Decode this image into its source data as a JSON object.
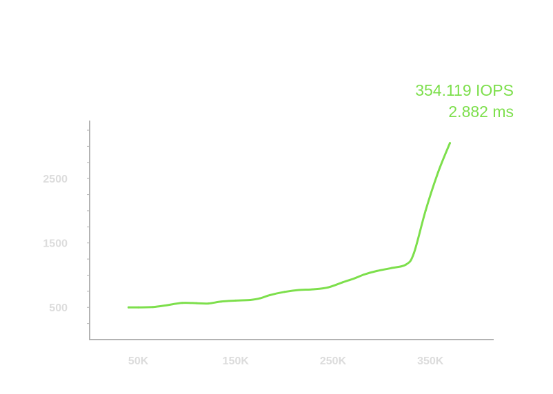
{
  "chart_data": {
    "type": "line",
    "x": [
      40000,
      50000,
      65000,
      80000,
      95000,
      110000,
      122000,
      135000,
      150000,
      165000,
      175000,
      185000,
      200000,
      215000,
      230000,
      245000,
      260000,
      272000,
      282000,
      295000,
      310000,
      325000,
      333000,
      345000,
      358000,
      370000
    ],
    "y": [
      500,
      500,
      505,
      535,
      570,
      565,
      560,
      590,
      605,
      615,
      640,
      690,
      740,
      770,
      780,
      810,
      890,
      950,
      1010,
      1065,
      1110,
      1165,
      1340,
      2000,
      2600,
      3050
    ],
    "x_ticks": [
      50000,
      150000,
      250000,
      350000
    ],
    "x_tick_labels": [
      "50K",
      "150K",
      "250K",
      "350K"
    ],
    "y_ticks": [
      500,
      1500,
      2500
    ],
    "y_tick_labels": [
      "500",
      "1500",
      "2500"
    ],
    "xlim": [
      0,
      415000
    ],
    "ylim": [
      0,
      3400
    ],
    "title": "",
    "xlabel": "",
    "ylabel": "",
    "grid": false,
    "line_color": "#7ddf4c",
    "axis_color": "#b3b3b3",
    "tick_color": "#dcdcdc",
    "annotation": {
      "line1": "354.119 IOPS",
      "line2": "2.882 ms"
    }
  }
}
